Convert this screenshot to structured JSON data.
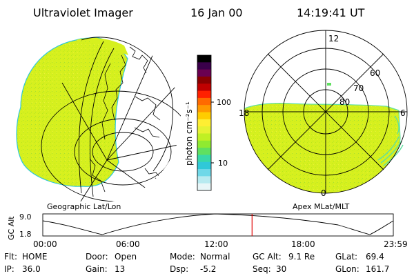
{
  "header": {
    "title": "Ultraviolet Imager",
    "date": "16 Jan 00",
    "time": "14:19:41 UT"
  },
  "left_panel": {
    "caption": "Geographic Lat/Lon"
  },
  "right_panel": {
    "caption": "Apex MLat/MLT",
    "mlt_labels": {
      "top": "12",
      "bottom": "0",
      "left": "18",
      "right": "6"
    },
    "lat_labels": [
      "60",
      "70",
      "80"
    ]
  },
  "colorbar": {
    "unit_label": "photon cm⁻²s⁻¹",
    "ticks": [
      "100",
      "10"
    ],
    "colors": [
      "#000000",
      "#3a004a",
      "#6a0050",
      "#8a0000",
      "#c00000",
      "#ff2000",
      "#ff6a00",
      "#ff9900",
      "#ffcc00",
      "#ffee33",
      "#e6f233",
      "#c0f024",
      "#90ea30",
      "#5fe060",
      "#38d8a8",
      "#30c8d8",
      "#70d8e8",
      "#b8eaf0",
      "#e8f6f8"
    ]
  },
  "altitude_plot": {
    "ylabel": "GC Alt",
    "yticks": [
      "9.0",
      "1.8"
    ],
    "xticks": [
      "00:00",
      "06:00",
      "12:00",
      "18:00",
      "23:59"
    ],
    "marker_color": "#e00000",
    "marker_fraction": 0.597
  },
  "status": {
    "row1": [
      {
        "label": "Flt:",
        "value": "HOME"
      },
      {
        "label": "Door:",
        "value": "Open"
      },
      {
        "label": "Mode:",
        "value": "Normal"
      },
      {
        "label": "GC Alt:",
        "value": "9.1 Re"
      },
      {
        "label": "GLat:",
        "value": "69.4"
      }
    ],
    "row2": [
      {
        "label": "IP:",
        "value": "36.0"
      },
      {
        "label": "Gain:",
        "value": "13"
      },
      {
        "label": "Dsp:",
        "value": "-5.2"
      },
      {
        "label": "Seq:",
        "value": "30"
      },
      {
        "label": "GLon:",
        "value": "161.7"
      }
    ]
  },
  "colors": {
    "aurora_fill": "#d6f01e",
    "aurora_edge": "#5fe0a0",
    "grid": "#000000"
  }
}
